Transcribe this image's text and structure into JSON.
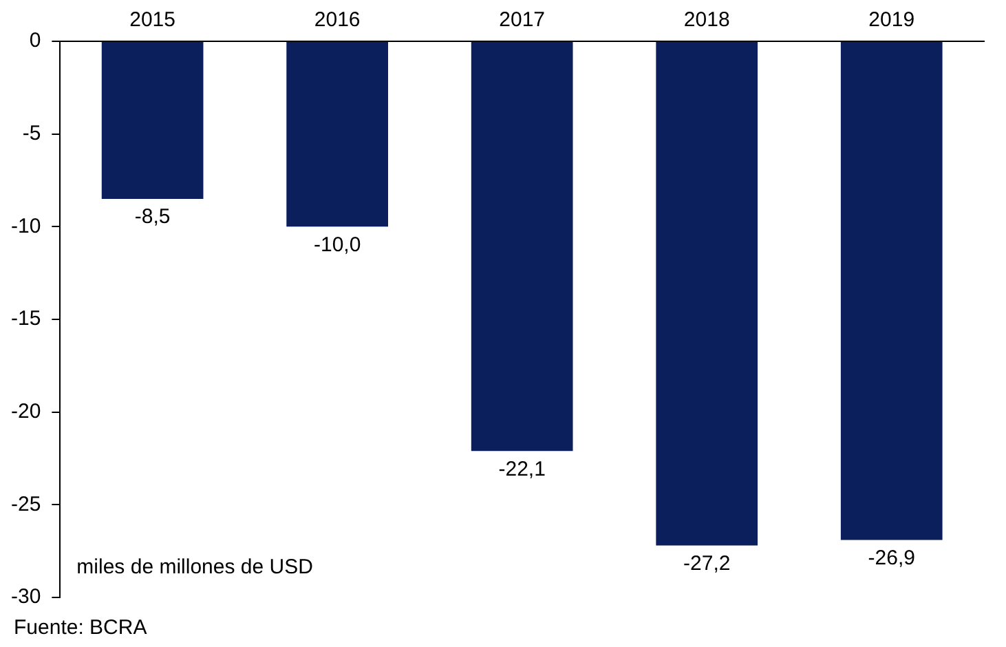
{
  "chart_data": {
    "type": "bar",
    "categories": [
      "2015",
      "2016",
      "2017",
      "2018",
      "2019"
    ],
    "values": [
      -8.5,
      -10.0,
      -22.1,
      -27.2,
      -26.9
    ],
    "value_labels": [
      "-8,5",
      "-10,0",
      "-22,1",
      "-27,2",
      "-26,9"
    ],
    "color": "#0a1f5b",
    "ylim": [
      -30,
      0
    ],
    "yticks": [
      0,
      -5,
      -10,
      -15,
      -20,
      -25,
      -30
    ],
    "ylabel": "miles de millones de USD",
    "annotations": [
      "Fuente: BCRA"
    ],
    "grid": false,
    "legend": false
  }
}
